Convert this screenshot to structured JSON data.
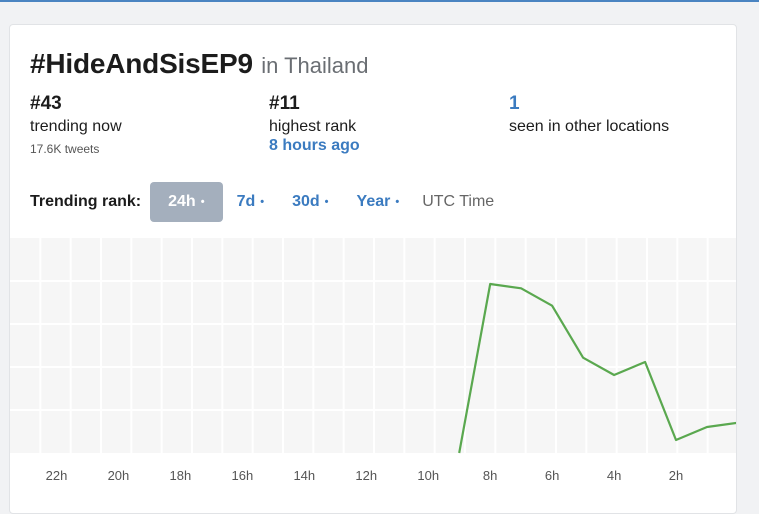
{
  "header": {
    "hashtag": "#HideAndSisEP9",
    "location": "in Thailand"
  },
  "stats": {
    "current_rank": "#43",
    "current_label": "trending now",
    "tweets": "17.6K tweets",
    "highest_rank": "#11",
    "highest_label": "highest rank",
    "highest_when": "8 hours ago",
    "other_locations": "1",
    "other_label": "seen in other locations"
  },
  "rank_controls": {
    "label": "Trending rank:",
    "tabs": [
      {
        "label": "24h",
        "dot": "•",
        "active": true
      },
      {
        "label": "7d",
        "dot": "•",
        "active": false
      },
      {
        "label": "30d",
        "dot": "•",
        "active": false
      },
      {
        "label": "Year",
        "dot": "•",
        "active": false
      }
    ],
    "utc_label": "UTC Time"
  },
  "colors": {
    "line": "#5aa84f",
    "accent": "#3b7bc0",
    "active_tab_bg": "#a4afbd",
    "grid_bg": "#f6f6f6"
  },
  "chart_data": {
    "type": "line",
    "x_tick_labels": [
      "22h",
      "20h",
      "18h",
      "16h",
      "14h",
      "12h",
      "10h",
      "8h",
      "6h",
      "4h",
      "2h"
    ],
    "x_ticks_hours_ago": [
      22,
      20,
      18,
      16,
      14,
      12,
      10,
      8,
      6,
      4,
      2
    ],
    "xlim": [
      23.5,
      0
    ],
    "ylim": [
      50,
      0
    ],
    "grid": true,
    "series": [
      {
        "points": [
          {
            "x": 9.0,
            "y": 50
          },
          {
            "x": 8.0,
            "y": 11
          },
          {
            "x": 7.0,
            "y": 12
          },
          {
            "x": 6.0,
            "y": 16
          },
          {
            "x": 5.0,
            "y": 28
          },
          {
            "x": 4.0,
            "y": 32
          },
          {
            "x": 3.0,
            "y": 29
          },
          {
            "x": 2.0,
            "y": 47
          },
          {
            "x": 1.0,
            "y": 44
          },
          {
            "x": 0.0,
            "y": 43
          }
        ]
      }
    ]
  }
}
